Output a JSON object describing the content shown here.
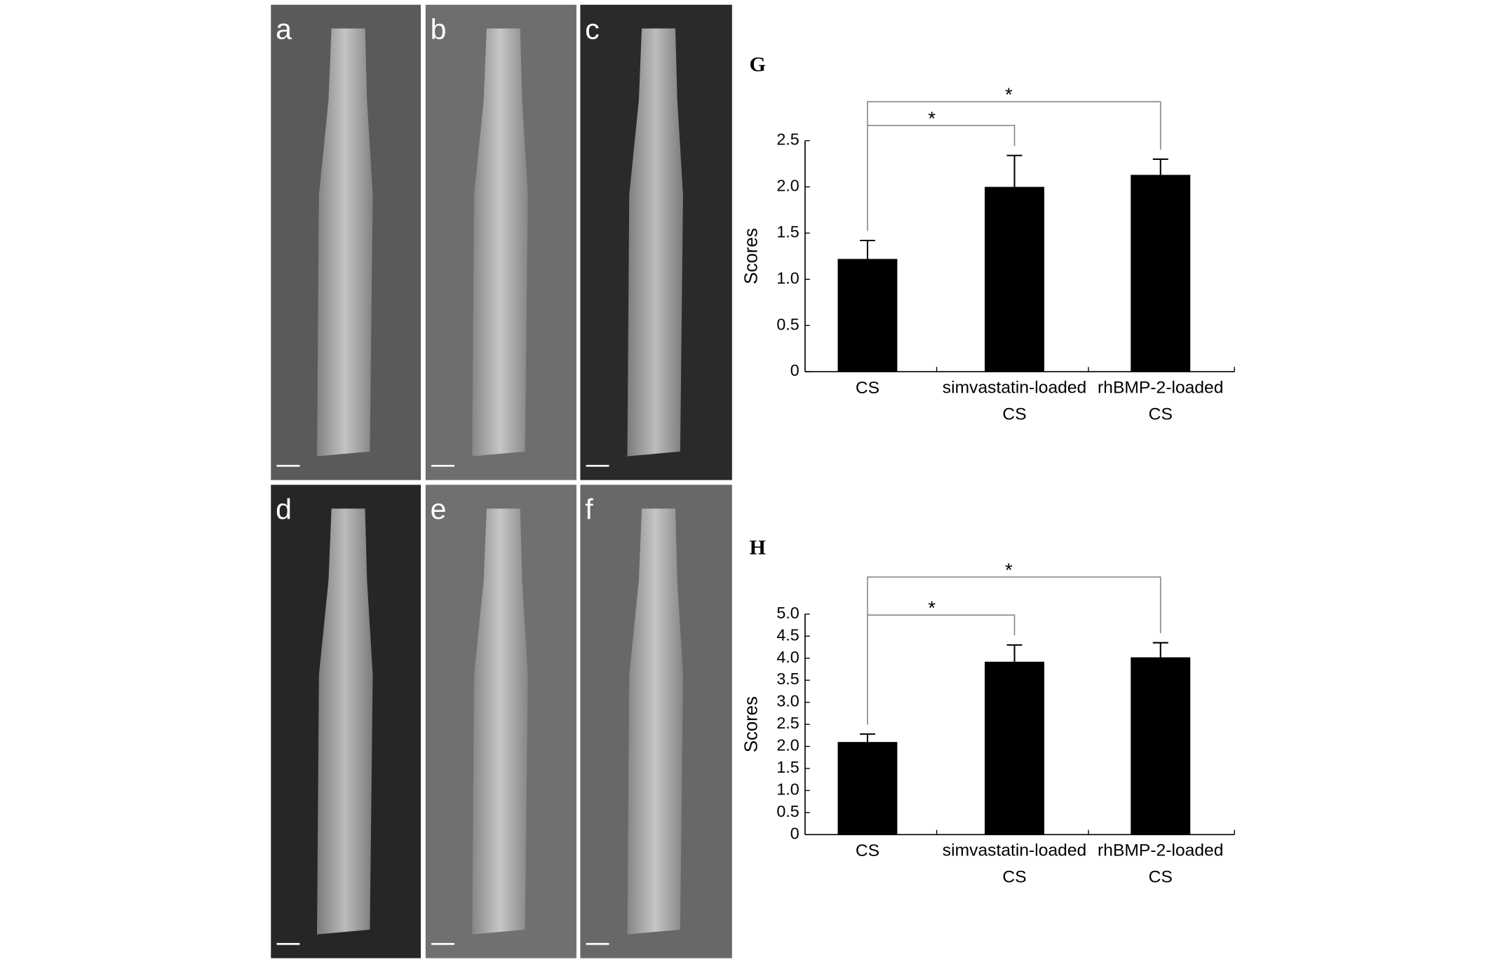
{
  "panel_labels": [
    "a",
    "b",
    "c",
    "d",
    "e",
    "f"
  ],
  "chart_data": [
    {
      "type": "bar",
      "title": "G",
      "ylabel": "Scores",
      "categories": [
        "CS",
        "simvastatin-loaded CS",
        "rhBMP-2-loaded CS"
      ],
      "values": [
        1.22,
        2.0,
        2.13
      ],
      "errors": [
        0.2,
        0.34,
        0.17
      ],
      "color": "#000000",
      "ylim": [
        0,
        2.5
      ],
      "yticks": [
        0,
        0.5,
        {
          "value": 1,
          "label": "1.0"
        },
        1.5,
        {
          "value": 2,
          "label": "2.0"
        },
        2.5
      ],
      "annotations": [
        "*",
        "*"
      ]
    },
    {
      "type": "bar",
      "title": "H",
      "ylabel": "Scores",
      "categories": [
        "CS",
        "simvastatin-loaded CS",
        "rhBMP-2-loaded CS"
      ],
      "values": [
        2.1,
        3.92,
        4.02
      ],
      "errors": [
        0.18,
        0.38,
        0.33
      ],
      "color": "#000000",
      "ylim": [
        0,
        5
      ],
      "yticks": [
        0,
        0.5,
        {
          "value": 1,
          "label": "1.0"
        },
        1.5,
        {
          "value": 2,
          "label": "2.0"
        },
        2.5,
        {
          "value": 3,
          "label": "3.0"
        },
        3.5,
        {
          "value": 4,
          "label": "4.0"
        },
        4.5,
        {
          "value": 5,
          "label": "5.0"
        }
      ],
      "annotations": [
        "*",
        "*"
      ]
    }
  ]
}
